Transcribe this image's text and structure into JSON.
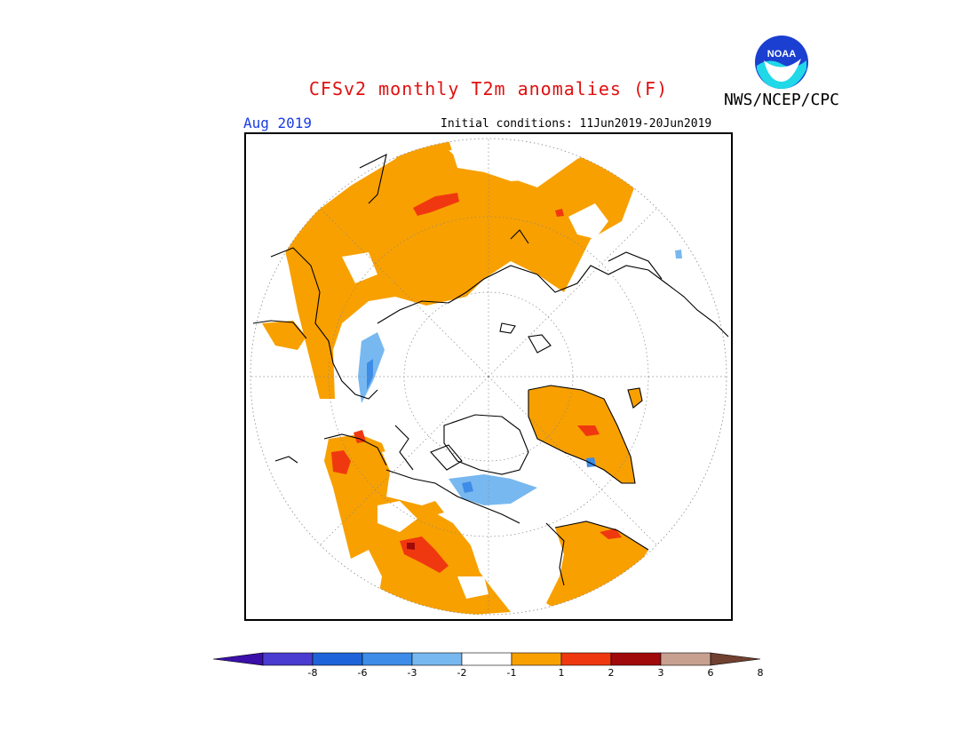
{
  "title": "CFSv2 monthly T2m anomalies (F)",
  "agency": "NWS/NCEP/CPC",
  "logo_text": "NOAA",
  "month": "Aug 2019",
  "initial_conditions": "Initial conditions: 11Jun2019-20Jun2019",
  "projection": "north-polar-stereographic",
  "colors": {
    "title": "#e01010",
    "month": "#1a3de0",
    "warm_1_2": "#f8a000",
    "warm_2_3": "#f03810",
    "warm_3_6": "#a00a0a",
    "cool_m2_m1": "#78b8f0",
    "cool_m3_m2": "#3c8ce8"
  },
  "colorbar": {
    "labels": [
      "-8",
      "-6",
      "-3",
      "-2",
      "-1",
      "1",
      "2",
      "3",
      "6",
      "8"
    ],
    "colors": [
      "#3a10a8",
      "#4a3cd0",
      "#1e64d8",
      "#3c8ce8",
      "#78b8f0",
      "#ffffff",
      "#f8a000",
      "#f03810",
      "#a00a0a",
      "#c8a090",
      "#704030"
    ]
  }
}
